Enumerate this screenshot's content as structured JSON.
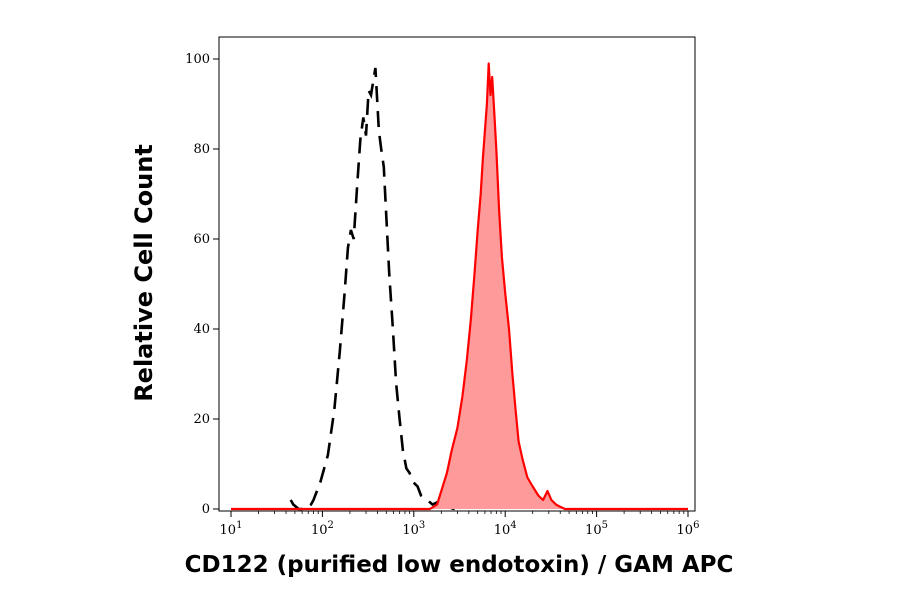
{
  "chart_data": {
    "type": "area",
    "title": "",
    "xlabel": "CD122 (purified low endotoxin) / GAM APC",
    "ylabel": "Relative Cell Count",
    "x_scale": "log",
    "xlim": [
      10,
      1000000
    ],
    "ylim": [
      0,
      100
    ],
    "x_ticks": [
      {
        "value": 10,
        "base": "10",
        "exp": "1"
      },
      {
        "value": 100,
        "base": "10",
        "exp": "2"
      },
      {
        "value": 1000,
        "base": "10",
        "exp": "3"
      },
      {
        "value": 10000,
        "base": "10",
        "exp": "4"
      },
      {
        "value": 100000,
        "base": "10",
        "exp": "5"
      },
      {
        "value": 1000000,
        "base": "10",
        "exp": "6"
      }
    ],
    "y_ticks": [
      {
        "value": 0,
        "label": "0"
      },
      {
        "value": 20,
        "label": "20"
      },
      {
        "value": 40,
        "label": "40"
      },
      {
        "value": 60,
        "label": "60"
      },
      {
        "value": 80,
        "label": "80"
      },
      {
        "value": 100,
        "label": "100"
      }
    ],
    "grid": false,
    "legend": "none",
    "series": [
      {
        "style": "dashed-black-line",
        "color": "#000000",
        "points": [
          [
            45,
            2
          ],
          [
            48,
            1
          ],
          [
            55,
            0
          ],
          [
            65,
            0
          ],
          [
            75,
            1
          ],
          [
            80,
            2
          ],
          [
            95,
            6
          ],
          [
            115,
            12
          ],
          [
            135,
            22
          ],
          [
            155,
            35
          ],
          [
            175,
            48
          ],
          [
            190,
            58
          ],
          [
            205,
            62
          ],
          [
            220,
            60
          ],
          [
            240,
            72
          ],
          [
            260,
            82
          ],
          [
            280,
            87
          ],
          [
            300,
            83
          ],
          [
            320,
            93
          ],
          [
            340,
            92
          ],
          [
            360,
            95
          ],
          [
            380,
            98
          ],
          [
            395,
            92
          ],
          [
            415,
            84
          ],
          [
            440,
            80
          ],
          [
            470,
            76
          ],
          [
            500,
            65
          ],
          [
            540,
            52
          ],
          [
            590,
            40
          ],
          [
            640,
            28
          ],
          [
            700,
            20
          ],
          [
            760,
            13
          ],
          [
            830,
            9
          ],
          [
            900,
            8
          ],
          [
            980,
            6
          ],
          [
            1100,
            5
          ],
          [
            1200,
            3
          ],
          [
            1400,
            2
          ],
          [
            1600,
            1
          ],
          [
            1800,
            1.5
          ],
          [
            2200,
            0.5
          ],
          [
            2800,
            0
          ]
        ]
      },
      {
        "style": "filled-red-area",
        "color": "#ff0000",
        "fill": "#ff9a9a",
        "points": [
          [
            10,
            0
          ],
          [
            1000,
            0
          ],
          [
            1500,
            0
          ],
          [
            1800,
            1
          ],
          [
            2000,
            4
          ],
          [
            2300,
            8
          ],
          [
            2600,
            13
          ],
          [
            3000,
            18
          ],
          [
            3400,
            25
          ],
          [
            3800,
            33
          ],
          [
            4200,
            42
          ],
          [
            4600,
            52
          ],
          [
            5000,
            62
          ],
          [
            5400,
            70
          ],
          [
            5700,
            78
          ],
          [
            6000,
            84
          ],
          [
            6300,
            90
          ],
          [
            6600,
            99
          ],
          [
            6900,
            92
          ],
          [
            7200,
            96
          ],
          [
            7600,
            88
          ],
          [
            8000,
            80
          ],
          [
            8600,
            66
          ],
          [
            9200,
            56
          ],
          [
            10000,
            48
          ],
          [
            11000,
            40
          ],
          [
            12000,
            30
          ],
          [
            13000,
            22
          ],
          [
            14000,
            15
          ],
          [
            15500,
            11
          ],
          [
            17500,
            7
          ],
          [
            20000,
            5
          ],
          [
            23000,
            3
          ],
          [
            26000,
            2
          ],
          [
            29000,
            4
          ],
          [
            32000,
            2
          ],
          [
            36000,
            1
          ],
          [
            40000,
            0.5
          ],
          [
            45000,
            0
          ],
          [
            1000000,
            0
          ]
        ]
      }
    ]
  }
}
